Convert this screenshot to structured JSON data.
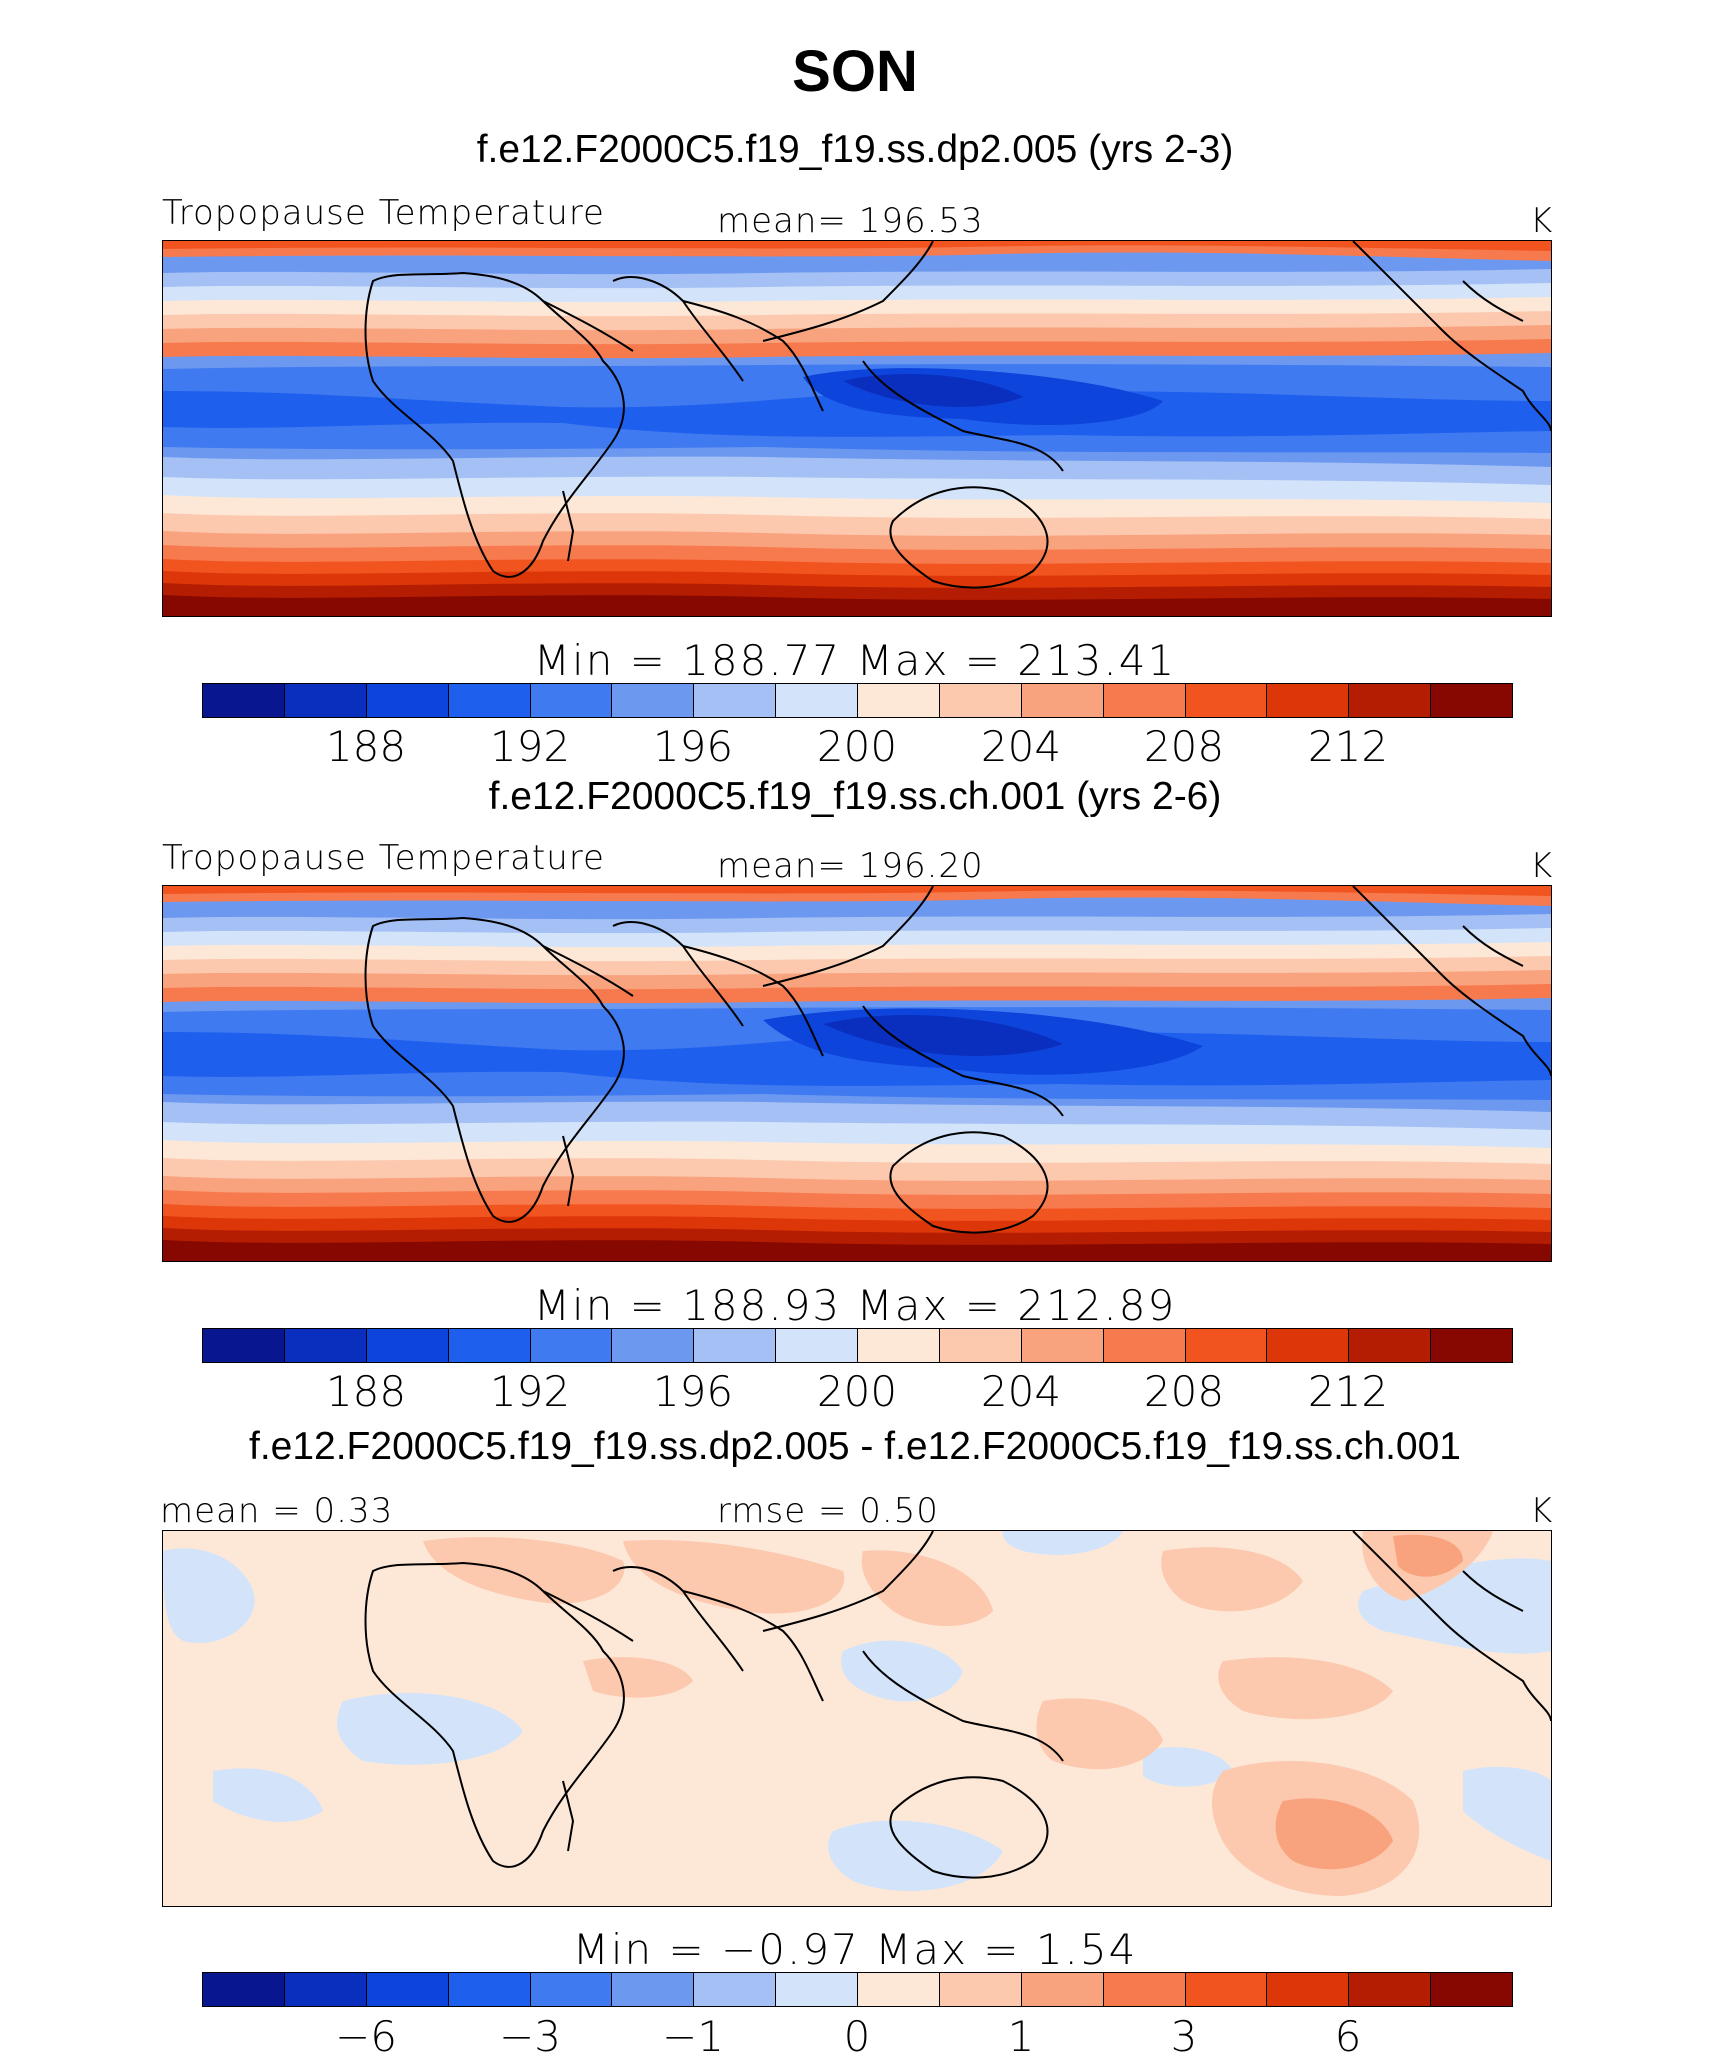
{
  "figure": {
    "title": "SON"
  },
  "colors": {
    "palette": [
      "#08178f",
      "#0a2fbf",
      "#0d44db",
      "#1f5fed",
      "#3f7af0",
      "#6c98ef",
      "#a4c0f4",
      "#d3e4fa",
      "#fde8d8",
      "#fcc8ae",
      "#f9a27e",
      "#f77a4e",
      "#f2541f",
      "#dc3609",
      "#b41d02",
      "#870800"
    ]
  },
  "panels": [
    {
      "title": "f.e12.F2000C5.f19_f19.ss.dp2.005 (yrs 2-3)",
      "left_label": "Tropopause  Temperature",
      "center_label": "mean=  196.53",
      "units": "K",
      "minmax": "Min  =  188.77  Max  =  213.41",
      "ticks": [
        "188",
        "192",
        "196",
        "200",
        "204",
        "208",
        "212"
      ]
    },
    {
      "title": "f.e12.F2000C5.f19_f19.ss.ch.001 (yrs 2-6)",
      "left_label": "Tropopause  Temperature",
      "center_label": "mean=  196.20",
      "units": "K",
      "minmax": "Min  =  188.93  Max  =  212.89",
      "ticks": [
        "188",
        "192",
        "196",
        "200",
        "204",
        "208",
        "212"
      ]
    },
    {
      "title": "f.e12.F2000C5.f19_f19.ss.dp2.005 - f.e12.F2000C5.f19_f19.ss.ch.001",
      "left_label": "mean  =      0.33",
      "center_label": "rmse  =      0.50",
      "units": "K",
      "minmax": "Min  =    −0.97  Max  =      1.54",
      "ticks": [
        "−6",
        "−3",
        "−1",
        "0",
        "1",
        "3",
        "6"
      ]
    }
  ]
}
